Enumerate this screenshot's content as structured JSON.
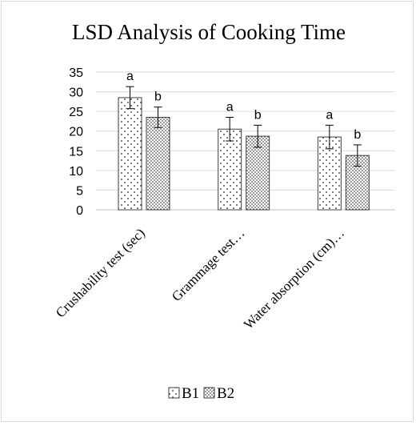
{
  "chart_data": {
    "type": "bar",
    "title": "LSD Analysis of Cooking Time",
    "xlabel": "",
    "ylabel": "",
    "ylim": [
      0,
      35
    ],
    "yticks": [
      0,
      5,
      10,
      15,
      20,
      25,
      30,
      35
    ],
    "grid": true,
    "legend_position": "bottom",
    "categories": [
      "Crushability test (sec)",
      "Grammage test…",
      "Water absorption (cm)…"
    ],
    "series": [
      {
        "name": "B1",
        "values": [
          28.5,
          20.5,
          18.5
        ],
        "errors": [
          2.8,
          3.0,
          3.0
        ],
        "labels": [
          "a",
          "a",
          "a"
        ],
        "pattern": "sparse-dots"
      },
      {
        "name": "B2",
        "values": [
          23.5,
          18.7,
          13.8
        ],
        "errors": [
          2.6,
          2.8,
          2.7
        ],
        "labels": [
          "b",
          "b",
          "b"
        ],
        "pattern": "dense-dots"
      }
    ]
  }
}
